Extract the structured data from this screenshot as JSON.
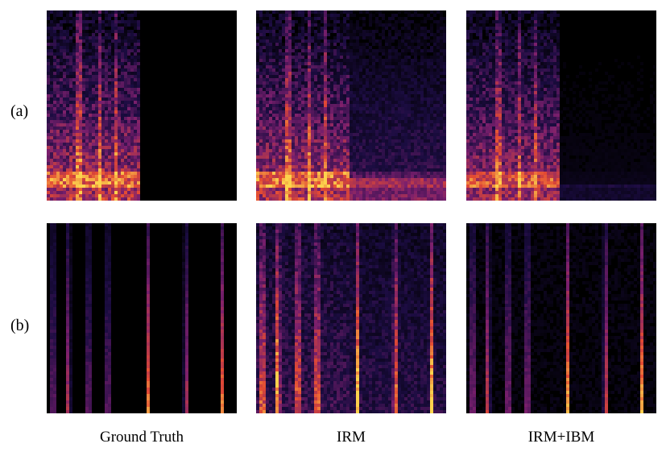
{
  "figure": {
    "row_labels": [
      "(a)",
      "(b)"
    ],
    "column_labels": [
      "Ground Truth",
      "IRM",
      "IRM+IBM"
    ],
    "panels": [
      {
        "row": "(a)",
        "column": "Ground Truth",
        "kind": "a",
        "mode": "gt"
      },
      {
        "row": "(a)",
        "column": "IRM",
        "kind": "a",
        "mode": "irm"
      },
      {
        "row": "(a)",
        "column": "IRM+IBM",
        "kind": "a",
        "mode": "ibm"
      },
      {
        "row": "(b)",
        "column": "Ground Truth",
        "kind": "b",
        "mode": "gt"
      },
      {
        "row": "(b)",
        "column": "IRM",
        "kind": "b",
        "mode": "irm"
      },
      {
        "row": "(b)",
        "column": "IRM+IBM",
        "kind": "b",
        "mode": "ibm"
      }
    ],
    "colors": {
      "background": "#000000",
      "low": "#1b0c41",
      "mid": "#7a1f6d",
      "high": "#e34a33",
      "peak": "#fcd34d"
    }
  }
}
